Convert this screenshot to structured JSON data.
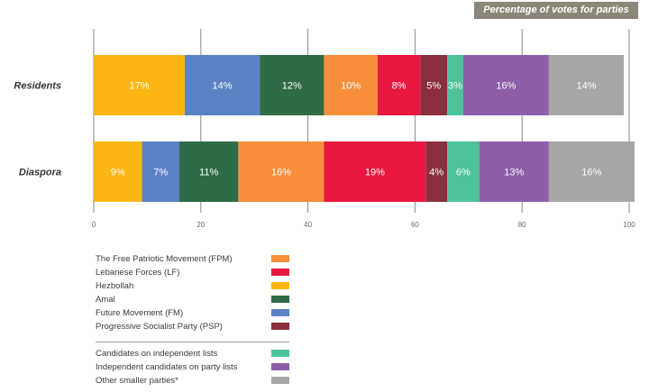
{
  "title": "Percentage of votes for parties",
  "colors": {
    "fpm": "#f68e3a",
    "lf": "#e8173f",
    "hezbollah": "#fbb614",
    "amal": "#2f6b47",
    "fm": "#5b82c4",
    "psp": "#8b2f3e",
    "independent_lists": "#4cc39b",
    "independent_party": "#8c5fa8",
    "other": "#a6a6a8"
  },
  "chart_data": {
    "type": "bar",
    "orientation": "horizontal",
    "stacked": true,
    "title": "Percentage of votes for parties",
    "categories": [
      "Residents",
      "Diaspora"
    ],
    "xlim": [
      0,
      100
    ],
    "xticks": [
      0,
      20,
      40,
      60,
      80,
      100
    ],
    "grid": true,
    "series": [
      {
        "name": "Hezbollah",
        "key": "hezbollah",
        "values": [
          17,
          9
        ],
        "labels": [
          "17%",
          "9%"
        ]
      },
      {
        "name": "Future Movement (FM)",
        "key": "fm",
        "values": [
          14,
          7
        ],
        "labels": [
          "14%",
          "7%"
        ]
      },
      {
        "name": "Amal",
        "key": "amal",
        "values": [
          12,
          11
        ],
        "labels": [
          "12%",
          "11%"
        ]
      },
      {
        "name": "The Free Patriotic Movement (FPM)",
        "key": "fpm",
        "values": [
          10,
          16
        ],
        "labels": [
          "10%",
          "16%"
        ]
      },
      {
        "name": "Lebanese Forces (LF)",
        "key": "lf",
        "values": [
          8,
          19
        ],
        "labels": [
          "8%",
          "19%"
        ]
      },
      {
        "name": "Progressive Socialist Party (PSP)",
        "key": "psp",
        "values": [
          5,
          4
        ],
        "labels": [
          "5%",
          "4%"
        ]
      },
      {
        "name": "Candidates on independent lists",
        "key": "independent_lists",
        "values": [
          3,
          6
        ],
        "labels": [
          "3%",
          "6%"
        ]
      },
      {
        "name": "Independent candidates on party lists",
        "key": "independent_party",
        "values": [
          16,
          13
        ],
        "labels": [
          "16%",
          "13%"
        ]
      },
      {
        "name": "Other smaller parties*",
        "key": "other",
        "values": [
          14,
          16
        ],
        "labels": [
          "14%",
          "16%"
        ]
      }
    ]
  },
  "legend": {
    "group1": [
      {
        "label": "The Free Patriotic Movement (FPM)",
        "key": "fpm"
      },
      {
        "label": "Lebanese Forces (LF)",
        "key": "lf"
      },
      {
        "label": "Hezbollah",
        "key": "hezbollah"
      },
      {
        "label": "Amal",
        "key": "amal"
      },
      {
        "label": "Future Movement (FM)",
        "key": "fm"
      },
      {
        "label": "Progressive Socialist Party (PSP)",
        "key": "psp"
      }
    ],
    "group2": [
      {
        "label": "Candidates on independent lists",
        "key": "independent_lists"
      },
      {
        "label": "Independent candidates on party lists",
        "key": "independent_party"
      },
      {
        "label": "Other smaller parties*",
        "key": "other"
      }
    ]
  }
}
